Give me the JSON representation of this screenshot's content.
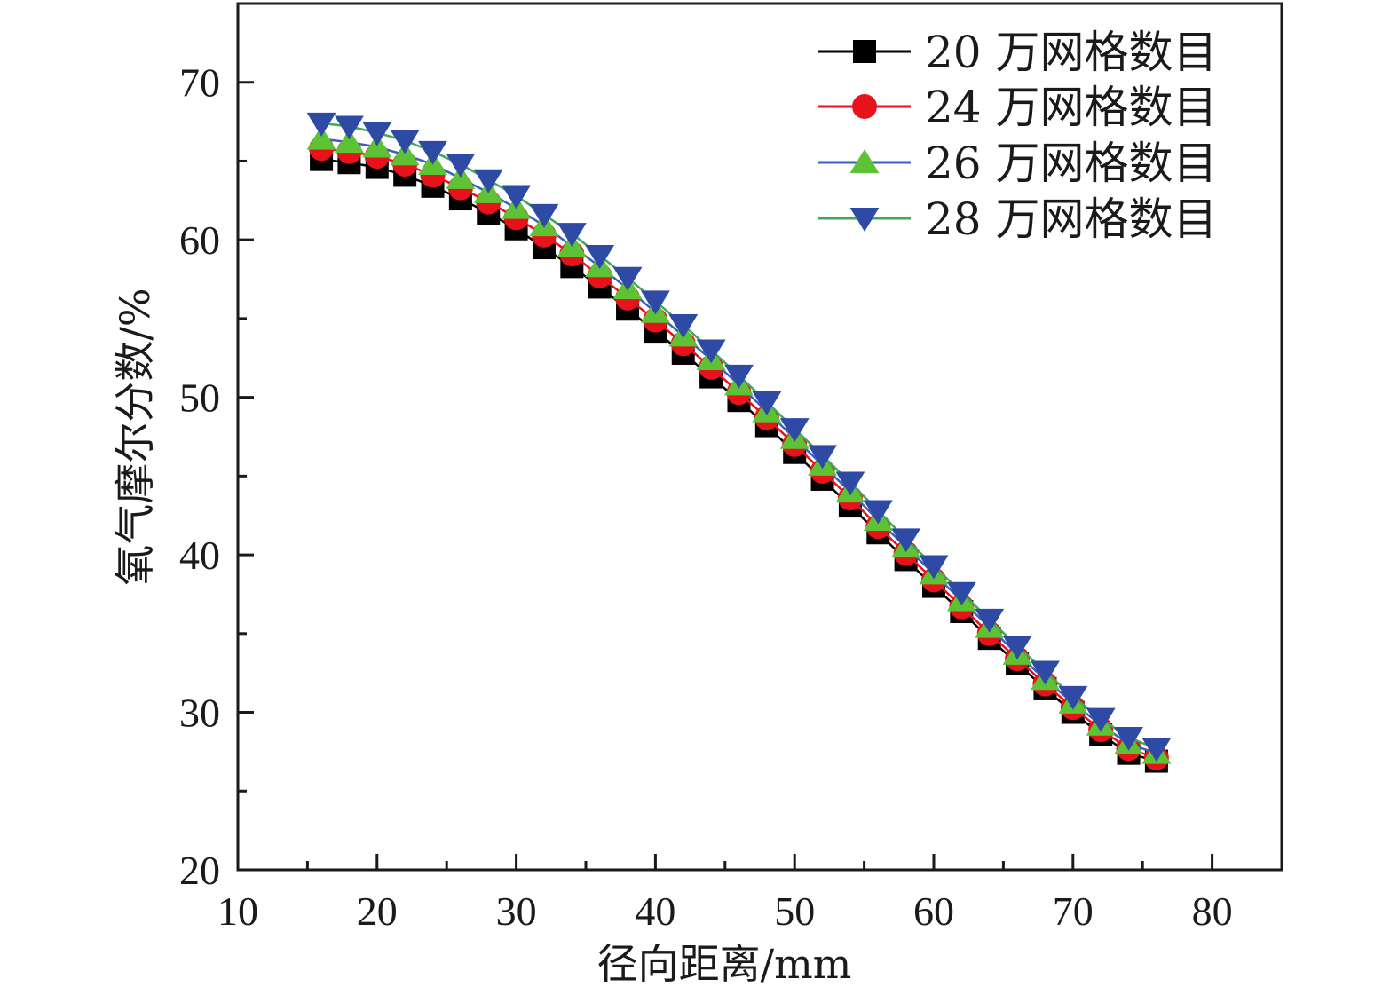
{
  "chart_data": {
    "type": "line",
    "xlabel": "径向距离/mm",
    "ylabel": "氧气摩尔分数/%",
    "xlim": [
      10,
      85
    ],
    "ylim": [
      20,
      75
    ],
    "x_ticks": [
      10,
      20,
      30,
      40,
      50,
      60,
      70,
      80
    ],
    "y_ticks": [
      20,
      30,
      40,
      50,
      60,
      70
    ],
    "grid": false,
    "legend_position": "top-right",
    "x": [
      16,
      18,
      20,
      22,
      24,
      26,
      28,
      30,
      32,
      34,
      36,
      38,
      40,
      42,
      44,
      46,
      48,
      50,
      52,
      54,
      56,
      58,
      60,
      62,
      64,
      66,
      68,
      70,
      72,
      74,
      76
    ],
    "series": [
      {
        "name": "20 万网格数目",
        "color": "#000000",
        "marker": "square",
        "values": [
          65.1,
          64.9,
          64.6,
          64.1,
          63.4,
          62.6,
          61.7,
          60.7,
          59.5,
          58.3,
          57.0,
          55.6,
          54.2,
          52.8,
          51.3,
          49.8,
          48.2,
          46.5,
          44.8,
          43.1,
          41.4,
          39.7,
          38.0,
          36.4,
          34.7,
          33.1,
          31.5,
          30.0,
          28.6,
          27.4,
          26.9
        ]
      },
      {
        "name": "24 万网格数目",
        "color": "#e8131a",
        "marker": "circle",
        "values": [
          65.8,
          65.6,
          65.3,
          64.8,
          64.1,
          63.3,
          62.4,
          61.4,
          60.3,
          59.1,
          57.7,
          56.3,
          54.9,
          53.4,
          51.9,
          50.3,
          48.7,
          47.0,
          45.3,
          43.6,
          41.8,
          40.1,
          38.4,
          36.7,
          35.0,
          33.4,
          31.8,
          30.3,
          28.9,
          27.7,
          27.1
        ]
      },
      {
        "name": "26 万网格数目",
        "color": "#5dc234",
        "line_color": "#3a5fc4",
        "marker": "triangle-up",
        "values": [
          66.4,
          66.2,
          65.9,
          65.4,
          64.8,
          63.9,
          63.0,
          62.0,
          60.9,
          59.6,
          58.3,
          56.9,
          55.4,
          53.9,
          52.4,
          50.8,
          49.1,
          47.4,
          45.7,
          44.0,
          42.2,
          40.5,
          38.8,
          37.1,
          35.4,
          33.7,
          32.1,
          30.6,
          29.2,
          28.0,
          27.4
        ]
      },
      {
        "name": "28 万网格数目",
        "color": "#2f4aa5",
        "line_color": "#3fa85a",
        "marker": "triangle-down",
        "values": [
          67.4,
          67.2,
          66.8,
          66.3,
          65.6,
          64.8,
          63.8,
          62.8,
          61.6,
          60.4,
          59.0,
          57.6,
          56.1,
          54.6,
          53.0,
          51.4,
          49.7,
          48.0,
          46.3,
          44.6,
          42.8,
          41.0,
          39.3,
          37.6,
          35.9,
          34.2,
          32.6,
          31.0,
          29.6,
          28.4,
          27.7
        ]
      }
    ]
  }
}
